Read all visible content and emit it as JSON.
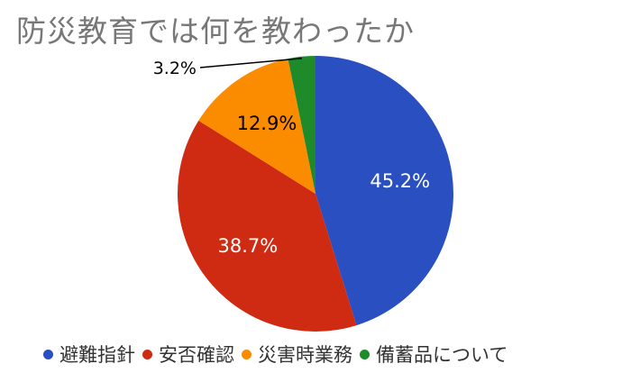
{
  "chart_data": {
    "type": "pie",
    "title": "防災教育では何を教わったか",
    "categories": [
      "避難指針",
      "安否確認",
      "災害時業務",
      "備蓄品について"
    ],
    "values": [
      45.2,
      38.7,
      12.9,
      3.2
    ],
    "labels": [
      "45.2%",
      "38.7%",
      "12.9%",
      "3.2%"
    ],
    "colors": [
      "#2a4fc0",
      "#cf2a12",
      "#fb8c00",
      "#1e8a2a"
    ],
    "label_colors": [
      "#ffffff",
      "#ffffff",
      "#000000",
      "#000000"
    ],
    "legend_position": "bottom",
    "start_angle_deg": 0,
    "direction": "clockwise"
  }
}
